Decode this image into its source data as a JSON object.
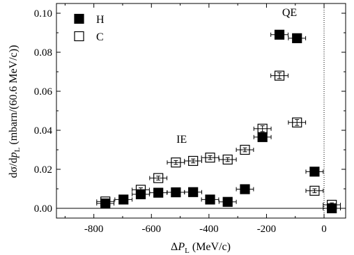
{
  "chart_data": {
    "type": "scatter",
    "xlabel_prefix": "Δ",
    "xlabel_var": "P",
    "xlabel_sub": "L",
    "xlabel_units": " (MeV/c)",
    "ylabel_prefix": "dσ/d",
    "ylabel_var": "p",
    "ylabel_sub": "L",
    "ylabel_units": " (mbarn/(60.6 MeV/c))",
    "xlim": [
      -930,
      75
    ],
    "ylim": [
      -0.005,
      0.105
    ],
    "xticks": [
      -800,
      -600,
      -400,
      -200,
      0
    ],
    "xtick_labels": [
      "-800",
      "-600",
      "-400",
      "-200",
      "0"
    ],
    "yticks": [
      0,
      0.02,
      0.04,
      0.06,
      0.08,
      0.1
    ],
    "ytick_labels": [
      "0.00",
      "0.02",
      "0.04",
      "0.06",
      "0.08",
      "0.10"
    ],
    "reference_line_x": 0,
    "legend_placement": "top-left",
    "annotations": [
      {
        "text": "QE",
        "x": -120,
        "y": 0.0985
      },
      {
        "text": "IE",
        "x": -495,
        "y": 0.0335
      }
    ],
    "series": [
      {
        "name": "H",
        "marker": "filled-square",
        "points": [
          {
            "x": -760,
            "y": 0.0025,
            "xerr": 30,
            "yerr": 0.001
          },
          {
            "x": -697,
            "y": 0.0045,
            "xerr": 30,
            "yerr": 0.001
          },
          {
            "x": -637,
            "y": 0.0072,
            "xerr": 30,
            "yerr": 0.001
          },
          {
            "x": -576,
            "y": 0.008,
            "xerr": 30,
            "yerr": 0.001
          },
          {
            "x": -515,
            "y": 0.0082,
            "xerr": 30,
            "yerr": 0.001
          },
          {
            "x": -455,
            "y": 0.0083,
            "xerr": 30,
            "yerr": 0.001
          },
          {
            "x": -396,
            "y": 0.0045,
            "xerr": 30,
            "yerr": 0.001
          },
          {
            "x": -335,
            "y": 0.0033,
            "xerr": 30,
            "yerr": 0.001
          },
          {
            "x": -275,
            "y": 0.0098,
            "xerr": 30,
            "yerr": 0.001
          },
          {
            "x": -214,
            "y": 0.0365,
            "xerr": 30,
            "yerr": 0.0015
          },
          {
            "x": -155,
            "y": 0.089,
            "xerr": 30,
            "yerr": 0.0015
          },
          {
            "x": -94,
            "y": 0.0872,
            "xerr": 30,
            "yerr": 0.0015
          },
          {
            "x": -33,
            "y": 0.0188,
            "xerr": 30,
            "yerr": 0.001
          },
          {
            "x": 27,
            "y": 0.0,
            "xerr": 30,
            "yerr": 0.001
          }
        ]
      },
      {
        "name": "C",
        "marker": "open-square",
        "points": [
          {
            "x": -760,
            "y": 0.0035,
            "xerr": 30,
            "yerr": 0.001
          },
          {
            "x": -637,
            "y": 0.0095,
            "xerr": 30,
            "yerr": 0.001
          },
          {
            "x": -576,
            "y": 0.0155,
            "xerr": 30,
            "yerr": 0.001
          },
          {
            "x": -515,
            "y": 0.0235,
            "xerr": 30,
            "yerr": 0.001
          },
          {
            "x": -455,
            "y": 0.0243,
            "xerr": 30,
            "yerr": 0.001
          },
          {
            "x": -396,
            "y": 0.026,
            "xerr": 30,
            "yerr": 0.001
          },
          {
            "x": -335,
            "y": 0.025,
            "xerr": 30,
            "yerr": 0.001
          },
          {
            "x": -275,
            "y": 0.03,
            "xerr": 30,
            "yerr": 0.001
          },
          {
            "x": -214,
            "y": 0.0408,
            "xerr": 30,
            "yerr": 0.0015
          },
          {
            "x": -155,
            "y": 0.068,
            "xerr": 30,
            "yerr": 0.0015
          },
          {
            "x": -94,
            "y": 0.044,
            "xerr": 30,
            "yerr": 0.0015
          },
          {
            "x": -33,
            "y": 0.009,
            "xerr": 30,
            "yerr": 0.001
          },
          {
            "x": 27,
            "y": 0.0018,
            "xerr": 30,
            "yerr": 0.001
          }
        ]
      }
    ]
  }
}
